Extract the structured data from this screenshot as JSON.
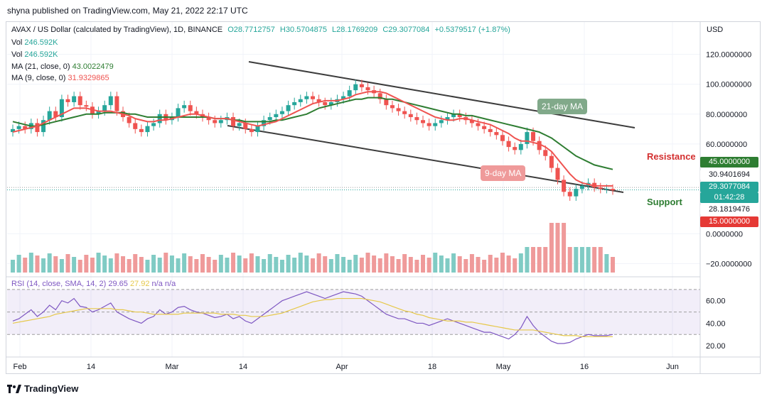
{
  "publisher_line": "shyna published on TradingView.com, May 21, 2022 22:17 UTC",
  "legend": {
    "symbol": "AVAX / US Dollar (calculated by TradingView), 1D, BINANCE",
    "open": "O28.7712757",
    "high": "H30.5704875",
    "low": "L28.1769209",
    "close": "C29.3077084",
    "change": "+0.5379517 (+1.87%)",
    "vol1_label": "Vol",
    "vol1_value": "246.592K",
    "vol2_label": "Vol",
    "vol2_value": "246.592K",
    "ma21_label": "MA (21, close, 0)",
    "ma21_value": "43.0022479",
    "ma9_label": "MA (9, close, 0)",
    "ma9_value": "31.9329865"
  },
  "rsi_legend": {
    "label": "RSI (14, close, SMA, 14, 2)",
    "v1": "29.65",
    "v2": "27.92",
    "v3": "n/a",
    "v4": "n/a"
  },
  "currency": "USD",
  "tags": {
    "t45": "45.0000000",
    "t30": "30.9401694",
    "t29": "29.3077084",
    "timer": "01:42:28",
    "t28": "28.1819476",
    "t15": "15.0000000"
  },
  "annotations": {
    "resistance": "Resistance",
    "support": "Support",
    "ma21": "21-day MA",
    "ma9": "9-day MA"
  },
  "brand": "TradingView",
  "colors": {
    "up": "#26a69a",
    "down": "#ef5350",
    "ma9": "#ef5350",
    "ma21": "#2e7d32",
    "rsi": "#7e57c2",
    "rsi_sma": "#e6c84a",
    "channel": "#3c3c3c"
  },
  "chart_data": [
    {
      "type": "candlestick",
      "title": "AVAX / US Dollar (calculated by TradingView), 1D, BINANCE",
      "x_ticks": [
        "Feb",
        "14",
        "Mar",
        "14",
        "Apr",
        "18",
        "May",
        "16",
        "Jun"
      ],
      "y_ticks": [
        "120.0000000",
        "100.0000000",
        "80.0000000",
        "60.0000000",
        "0.0000000",
        "−20.0000000"
      ],
      "ylim": [
        -26,
        135
      ],
      "close": [
        70,
        72,
        70,
        74,
        68,
        76,
        82,
        78,
        90,
        88,
        92,
        86,
        85,
        80,
        82,
        86,
        92,
        82,
        78,
        74,
        70,
        68,
        72,
        74,
        80,
        76,
        78,
        84,
        86,
        82,
        80,
        78,
        76,
        74,
        76,
        78,
        72,
        74,
        70,
        68,
        72,
        76,
        78,
        80,
        82,
        86,
        88,
        90,
        92,
        90,
        88,
        86,
        88,
        90,
        92,
        96,
        100,
        98,
        96,
        94,
        90,
        86,
        84,
        82,
        80,
        78,
        76,
        74,
        72,
        74,
        76,
        78,
        80,
        78,
        76,
        74,
        72,
        70,
        68,
        66,
        62,
        58,
        56,
        60,
        68,
        62,
        56,
        52,
        44,
        36,
        28,
        25,
        30,
        32,
        34,
        31,
        30,
        30,
        29
      ],
      "ma9": [
        68,
        69,
        70,
        71,
        72,
        74,
        76,
        78,
        80,
        82,
        84,
        84,
        84,
        83,
        82,
        82,
        82,
        81,
        80,
        79,
        77,
        76,
        75,
        75,
        76,
        76,
        77,
        78,
        79,
        80,
        80,
        79,
        78,
        77,
        77,
        77,
        76,
        75,
        74,
        73,
        72,
        73,
        74,
        75,
        77,
        79,
        81,
        83,
        85,
        87,
        88,
        89,
        89,
        89,
        90,
        91,
        93,
        94,
        95,
        95,
        95,
        94,
        92,
        90,
        88,
        86,
        84,
        82,
        80,
        78,
        77,
        76,
        76,
        77,
        77,
        76,
        75,
        74,
        73,
        71,
        69,
        67,
        64,
        62,
        62,
        61,
        60,
        58,
        55,
        50,
        45,
        40,
        36,
        34,
        33,
        32,
        32,
        32,
        32
      ],
      "ma21": [
        75,
        74,
        73,
        72,
        72,
        73,
        74,
        75,
        76,
        77,
        78,
        79,
        80,
        80,
        80,
        81,
        81,
        81,
        81,
        80,
        80,
        79,
        78,
        78,
        78,
        78,
        78,
        78,
        78,
        78,
        78,
        78,
        78,
        77,
        77,
        77,
        76,
        76,
        75,
        75,
        75,
        75,
        75,
        76,
        76,
        77,
        78,
        79,
        80,
        82,
        84,
        85,
        86,
        87,
        88,
        89,
        90,
        90,
        91,
        91,
        91,
        90,
        90,
        89,
        88,
        87,
        86,
        85,
        84,
        83,
        82,
        81,
        80,
        80,
        79,
        79,
        78,
        77,
        76,
        75,
        74,
        73,
        72,
        71,
        70,
        69,
        68,
        66,
        64,
        61,
        58,
        55,
        52,
        50,
        48,
        46,
        45,
        44,
        43
      ],
      "volume_series": "Vol 246.592K",
      "rsi": {
        "ylim": [
          10,
          80
        ],
        "ticks": [
          "60.00",
          "40.00",
          "20.00"
        ],
        "bands": [
          70,
          30
        ],
        "rsi_values": [
          42,
          44,
          48,
          52,
          46,
          50,
          56,
          52,
          60,
          58,
          62,
          55,
          54,
          50,
          52,
          55,
          58,
          50,
          47,
          44,
          42,
          40,
          44,
          46,
          52,
          48,
          50,
          54,
          55,
          52,
          50,
          49,
          47,
          45,
          46,
          48,
          44,
          46,
          42,
          40,
          44,
          48,
          52,
          56,
          60,
          62,
          64,
          66,
          68,
          66,
          64,
          62,
          64,
          66,
          68,
          67,
          66,
          64,
          60,
          56,
          52,
          48,
          46,
          44,
          44,
          42,
          40,
          40,
          38,
          40,
          42,
          44,
          42,
          40,
          38,
          36,
          34,
          32,
          32,
          30,
          28,
          26,
          30,
          36,
          46,
          38,
          32,
          28,
          24,
          22,
          22,
          23,
          26,
          28,
          30,
          29,
          29,
          29,
          30
        ],
        "sma_values": [
          40,
          41,
          42,
          43,
          44,
          45,
          46,
          48,
          49,
          50,
          51,
          52,
          53,
          53,
          53,
          53,
          53,
          52,
          52,
          51,
          50,
          50,
          49,
          48,
          48,
          48,
          48,
          48,
          49,
          49,
          49,
          49,
          49,
          49,
          48,
          48,
          48,
          47,
          47,
          46,
          46,
          46,
          47,
          48,
          49,
          51,
          53,
          55,
          57,
          59,
          60,
          61,
          61,
          62,
          62,
          62,
          62,
          62,
          61,
          60,
          59,
          57,
          55,
          53,
          51,
          50,
          48,
          47,
          45,
          44,
          43,
          42,
          42,
          42,
          41,
          41,
          40,
          39,
          38,
          37,
          36,
          35,
          34,
          34,
          34,
          34,
          33,
          32,
          31,
          30,
          29,
          29,
          29,
          28,
          28,
          28,
          28,
          28,
          28
        ]
      }
    }
  ]
}
